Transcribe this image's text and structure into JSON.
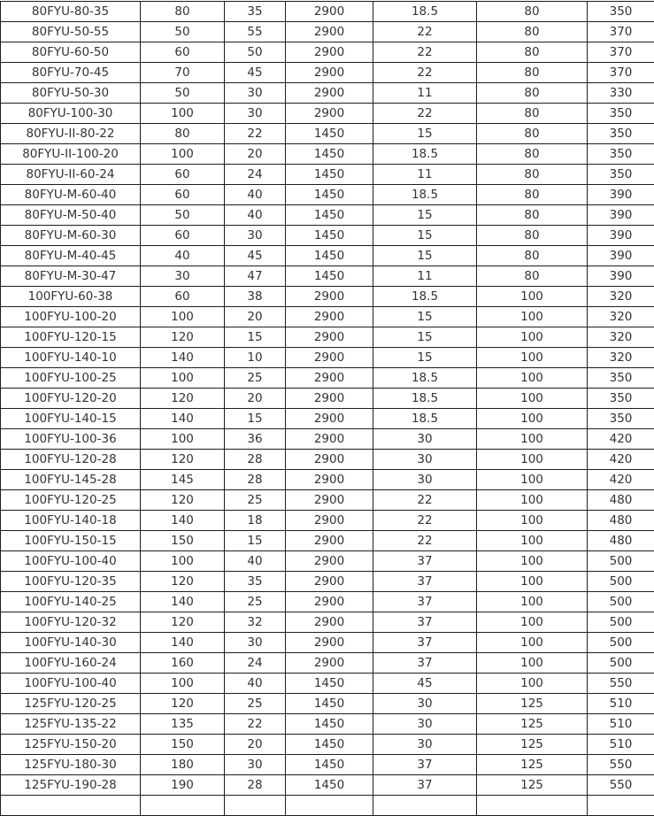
{
  "table": {
    "rows": [
      [
        "80FYU-80-35",
        "80",
        "35",
        "2900",
        "18.5",
        "80",
        "350"
      ],
      [
        "80FYU-50-55",
        "50",
        "55",
        "2900",
        "22",
        "80",
        "370"
      ],
      [
        "80FYU-60-50",
        "60",
        "50",
        "2900",
        "22",
        "80",
        "370"
      ],
      [
        "80FYU-70-45",
        "70",
        "45",
        "2900",
        "22",
        "80",
        "370"
      ],
      [
        "80FYU-50-30",
        "50",
        "30",
        "2900",
        "11",
        "80",
        "330"
      ],
      [
        "80FYU-100-30",
        "100",
        "30",
        "2900",
        "22",
        "80",
        "350"
      ],
      [
        "80FYU-II-80-22",
        "80",
        "22",
        "1450",
        "15",
        "80",
        "350"
      ],
      [
        "80FYU-II-100-20",
        "100",
        "20",
        "1450",
        "18.5",
        "80",
        "350"
      ],
      [
        "80FYU-II-60-24",
        "60",
        "24",
        "1450",
        "11",
        "80",
        "350"
      ],
      [
        "80FYU-M-60-40",
        "60",
        "40",
        "1450",
        "18.5",
        "80",
        "390"
      ],
      [
        "80FYU-M-50-40",
        "50",
        "40",
        "1450",
        "15",
        "80",
        "390"
      ],
      [
        "80FYU-M-60-30",
        "60",
        "30",
        "1450",
        "15",
        "80",
        "390"
      ],
      [
        "80FYU-M-40-45",
        "40",
        "45",
        "1450",
        "15",
        "80",
        "390"
      ],
      [
        "80FYU-M-30-47",
        "30",
        "47",
        "1450",
        "11",
        "80",
        "390"
      ],
      [
        "100FYU-60-38",
        "60",
        "38",
        "2900",
        "18.5",
        "100",
        "320"
      ],
      [
        "100FYU-100-20",
        "100",
        "20",
        "2900",
        "15",
        "100",
        "320"
      ],
      [
        "100FYU-120-15",
        "120",
        "15",
        "2900",
        "15",
        "100",
        "320"
      ],
      [
        "100FYU-140-10",
        "140",
        "10",
        "2900",
        "15",
        "100",
        "320"
      ],
      [
        "100FYU-100-25",
        "100",
        "25",
        "2900",
        "18.5",
        "100",
        "350"
      ],
      [
        "100FYU-120-20",
        "120",
        "20",
        "2900",
        "18.5",
        "100",
        "350"
      ],
      [
        "100FYU-140-15",
        "140",
        "15",
        "2900",
        "18.5",
        "100",
        "350"
      ],
      [
        "100FYU-100-36",
        "100",
        "36",
        "2900",
        "30",
        "100",
        "420"
      ],
      [
        "100FYU-120-28",
        "120",
        "28",
        "2900",
        "30",
        "100",
        "420"
      ],
      [
        "100FYU-145-28",
        "145",
        "28",
        "2900",
        "30",
        "100",
        "420"
      ],
      [
        "100FYU-120-25",
        "120",
        "25",
        "2900",
        "22",
        "100",
        "480"
      ],
      [
        "100FYU-140-18",
        "140",
        "18",
        "2900",
        "22",
        "100",
        "480"
      ],
      [
        "100FYU-150-15",
        "150",
        "15",
        "2900",
        "22",
        "100",
        "480"
      ],
      [
        "100FYU-100-40",
        "100",
        "40",
        "2900",
        "37",
        "100",
        "500"
      ],
      [
        "100FYU-120-35",
        "120",
        "35",
        "2900",
        "37",
        "100",
        "500"
      ],
      [
        "100FYU-140-25",
        "140",
        "25",
        "2900",
        "37",
        "100",
        "500"
      ],
      [
        "100FYU-120-32",
        "120",
        "32",
        "2900",
        "37",
        "100",
        "500"
      ],
      [
        "100FYU-140-30",
        "140",
        "30",
        "2900",
        "37",
        "100",
        "500"
      ],
      [
        "100FYU-160-24",
        "160",
        "24",
        "2900",
        "37",
        "100",
        "500"
      ],
      [
        "100FYU-100-40",
        "100",
        "40",
        "1450",
        "45",
        "100",
        "550"
      ],
      [
        "125FYU-120-25",
        "120",
        "25",
        "1450",
        "30",
        "125",
        "510"
      ],
      [
        "125FYU-135-22",
        "135",
        "22",
        "1450",
        "30",
        "125",
        "510"
      ],
      [
        "125FYU-150-20",
        "150",
        "20",
        "1450",
        "30",
        "125",
        "510"
      ],
      [
        "125FYU-180-30",
        "180",
        "30",
        "1450",
        "37",
        "125",
        "550"
      ],
      [
        "125FYU-190-28",
        "190",
        "28",
        "1450",
        "37",
        "125",
        "550"
      ]
    ]
  }
}
